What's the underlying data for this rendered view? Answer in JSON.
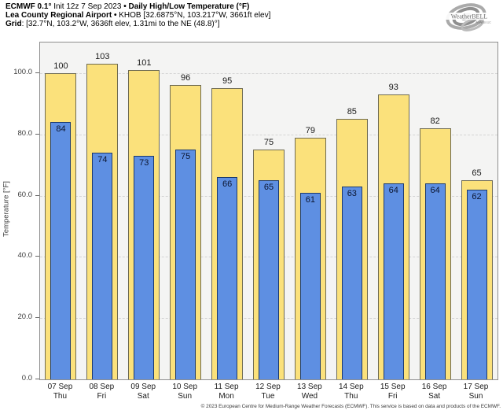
{
  "header": {
    "line1": {
      "model": "ECMWF 0.1°",
      "init": " Init 12z 7 Sep 2023 ",
      "product": "• Daily High/Low Temperature (°F)"
    },
    "line2": {
      "station": "Lea County Regional Airport •",
      "details": " KHOB [32.6875°N, 103.217°W, 3661ft elev]"
    },
    "line3": {
      "label": "Grid",
      "details": ": [32.7°N, 103.2°W, 3636ft elev, 1.31mi to the NE (48.8)°]"
    }
  },
  "logo": {
    "text": "WeatherBELL",
    "subtext": "Analytics LLC"
  },
  "footer": {
    "copyright": "© 2023 European Centre for Medium-Range Weather Forecasts (ECMWF). This service is based on data and products of the ECMWF."
  },
  "chart_data": {
    "type": "bar",
    "title": "Daily High/Low Temperature (°F)",
    "ylabel": "Temperature [°F]",
    "ylim": [
      0,
      110
    ],
    "yticks": [
      {
        "value": 0,
        "label": "0.0"
      },
      {
        "value": 20,
        "label": "20.0"
      },
      {
        "value": 40,
        "label": "40.0"
      },
      {
        "value": 60,
        "label": "60.0"
      },
      {
        "value": 80,
        "label": "80.0"
      },
      {
        "value": 100,
        "label": "100.0"
      }
    ],
    "grid": "horizontal-dashed",
    "legend_position": "none",
    "categories": [
      {
        "date": "07 Sep",
        "day": "Thu"
      },
      {
        "date": "08 Sep",
        "day": "Fri"
      },
      {
        "date": "09 Sep",
        "day": "Sat"
      },
      {
        "date": "10 Sep",
        "day": "Sun"
      },
      {
        "date": "11 Sep",
        "day": "Mon"
      },
      {
        "date": "12 Sep",
        "day": "Tue"
      },
      {
        "date": "13 Sep",
        "day": "Wed"
      },
      {
        "date": "14 Sep",
        "day": "Thu"
      },
      {
        "date": "15 Sep",
        "day": "Fri"
      },
      {
        "date": "16 Sep",
        "day": "Sat"
      },
      {
        "date": "17 Sep",
        "day": "Sun"
      }
    ],
    "series": [
      {
        "name": "High",
        "color": "#fbe17b",
        "border": "#6f6b52",
        "values": [
          100,
          103,
          101,
          96,
          95,
          75,
          79,
          85,
          93,
          82,
          65
        ]
      },
      {
        "name": "Low",
        "color": "#5e8fe2",
        "border": "#1c3a6e",
        "values": [
          84,
          74,
          73,
          75,
          66,
          65,
          61,
          63,
          64,
          64,
          62
        ]
      }
    ]
  },
  "colors": {
    "plot_bg": "#f4f4f3",
    "frame": "#8e8e8e",
    "gridline": "#d4d4d4",
    "high_fill": "#fbe17b",
    "low_fill": "#5e8fe2"
  }
}
